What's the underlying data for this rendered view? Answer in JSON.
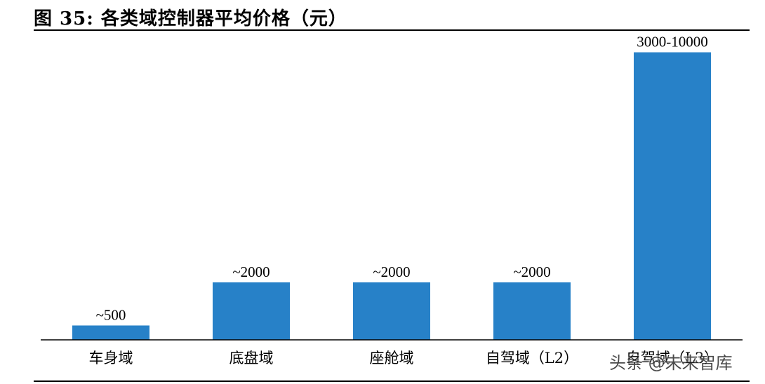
{
  "figure": {
    "title": "图 35: 各类域控制器平均价格（元）",
    "watermark": "头条 @未来智库"
  },
  "colors": {
    "bar": "#2781c8",
    "axis": "#000000"
  },
  "chart_data": {
    "type": "bar",
    "title": "各类域控制器平均价格（元）",
    "categories": [
      "车身域",
      "底盘域",
      "座舱域",
      "自驾域（L2）",
      "自驾域（L3）"
    ],
    "values": [
      500,
      2000,
      2000,
      2000,
      10000
    ],
    "value_labels": [
      "~500",
      "~2000",
      "~2000",
      "~2000",
      "3000-10000"
    ],
    "ylim": [
      0,
      10600
    ],
    "grid": false,
    "legend": "none"
  }
}
